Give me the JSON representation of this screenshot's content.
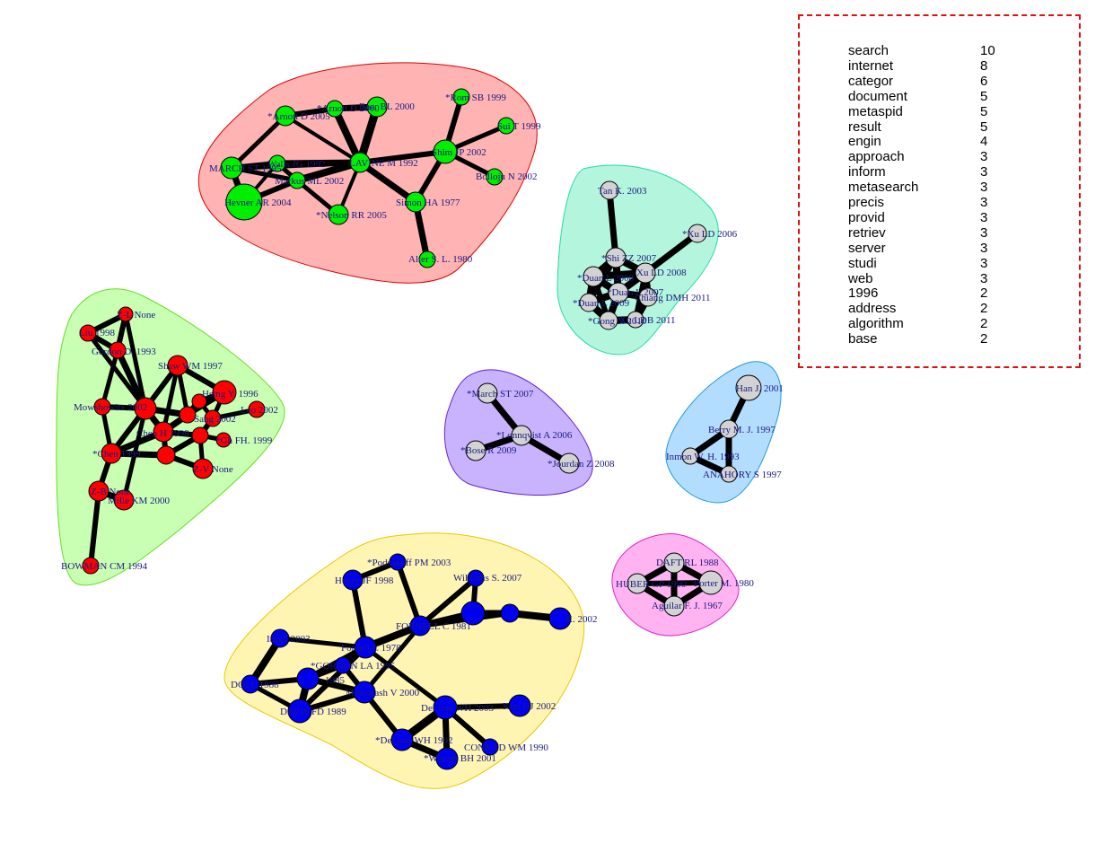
{
  "legend": {
    "terms": [
      {
        "word": "search",
        "count": "10"
      },
      {
        "word": "internet",
        "count": "8"
      },
      {
        "word": "categor",
        "count": "6"
      },
      {
        "word": "document",
        "count": "5"
      },
      {
        "word": "metaspid",
        "count": "5"
      },
      {
        "word": "result",
        "count": "5"
      },
      {
        "word": "engin",
        "count": "4"
      },
      {
        "word": "approach",
        "count": "3"
      },
      {
        "word": "inform",
        "count": "3"
      },
      {
        "word": "metasearch",
        "count": "3"
      },
      {
        "word": "precis",
        "count": "3"
      },
      {
        "word": "provid",
        "count": "3"
      },
      {
        "word": "retriev",
        "count": "3"
      },
      {
        "word": "server",
        "count": "3"
      },
      {
        "word": "studi",
        "count": "3"
      },
      {
        "word": "web",
        "count": "3"
      },
      {
        "word": "1996",
        "count": "2"
      },
      {
        "word": "address",
        "count": "2"
      },
      {
        "word": "algorithm",
        "count": "2"
      },
      {
        "word": "base",
        "count": "2"
      }
    ]
  },
  "colors": {
    "green": "#00ee00",
    "red": "#ff0000",
    "blue": "#0000ee",
    "grey": "#d3d3d3",
    "legend_border": "#e01010"
  },
  "clusters": [
    {
      "id": "red",
      "fill": "#ffb3b3",
      "stroke": "#dd0000"
    },
    {
      "id": "teal",
      "fill": "#b3f5dd",
      "stroke": "#22ddaa"
    },
    {
      "id": "lime",
      "fill": "#c9ffb3",
      "stroke": "#66dd22"
    },
    {
      "id": "purple",
      "fill": "#c9b3ff",
      "stroke": "#6622cc"
    },
    {
      "id": "sky",
      "fill": "#b3ddff",
      "stroke": "#2299dd"
    },
    {
      "id": "yellow",
      "fill": "#fff5b3",
      "stroke": "#e6c800"
    },
    {
      "id": "pink",
      "fill": "#ffb3f0",
      "stroke": "#dd22cc"
    }
  ],
  "nodes": [
    {
      "id": "g1",
      "label": "*Arnott D 2005",
      "color": "green"
    },
    {
      "id": "g2",
      "label": "*Arnott D 2000",
      "color": "green"
    },
    {
      "id": "g3",
      "label": "Baer BL 2000",
      "color": "green"
    },
    {
      "id": "g4",
      "label": "*Rom SB 1999",
      "color": "green"
    },
    {
      "id": "g5",
      "label": "Sui T 1999",
      "color": "green"
    },
    {
      "id": "g6",
      "label": "MARCH ST 1995",
      "color": "green"
    },
    {
      "id": "g7",
      "label": "Walls JG 1992",
      "color": "green"
    },
    {
      "id": "g8",
      "label": "LAVINE M 1992",
      "color": "green"
    },
    {
      "id": "g9",
      "label": "Shim JP 2002",
      "color": "green"
    },
    {
      "id": "g10",
      "label": "Markus ML 2002",
      "color": "green"
    },
    {
      "id": "g11",
      "label": "Hevner AR 2004",
      "color": "green"
    },
    {
      "id": "g12",
      "label": "Bolloju N 2002",
      "color": "green"
    },
    {
      "id": "g13",
      "label": "*Nelson RR 2005",
      "color": "green"
    },
    {
      "id": "g14",
      "label": "Simon HA 1977",
      "color": "green"
    },
    {
      "id": "g15",
      "label": "Alter S. L. 1980",
      "color": "green"
    },
    {
      "id": "t1",
      "label": "Tan K. 2003",
      "color": "grey"
    },
    {
      "id": "t2",
      "label": "*Xu LD 2006",
      "color": "grey"
    },
    {
      "id": "t3",
      "label": "*Shi ZZ 2007",
      "color": "grey"
    },
    {
      "id": "t4",
      "label": "*Duan L 2008",
      "color": "grey"
    },
    {
      "id": "t5",
      "label": "Xu LD 2008",
      "color": "grey"
    },
    {
      "id": "t6",
      "label": "*Duan L 2007",
      "color": "grey"
    },
    {
      "id": "t7",
      "label": "Chiang DMH 2011",
      "color": "grey"
    },
    {
      "id": "t8",
      "label": "*Duan L 2009",
      "color": "grey"
    },
    {
      "id": "t9",
      "label": "*Gong N 2010",
      "color": "grey"
    },
    {
      "id": "t10",
      "label": "Xu LDB 2011",
      "color": "grey"
    },
    {
      "id": "r1",
      "label": "Z-L None",
      "color": "red"
    },
    {
      "id": "r2",
      "label": "Liu 1998",
      "color": "red"
    },
    {
      "id": "r3",
      "label": "Gordon D. 1993",
      "color": "red"
    },
    {
      "id": "r4",
      "label": "Shaw WM 1997",
      "color": "red"
    },
    {
      "id": "r5",
      "label": "Hsing Y. 1996",
      "color": "red"
    },
    {
      "id": "r6",
      "label": "Mowshowitz 2002",
      "color": "red"
    },
    {
      "id": "r7",
      "label": "Leo 2002",
      "color": "red"
    },
    {
      "id": "r8",
      "label": "Sang 2002",
      "color": "red"
    },
    {
      "id": "r9",
      "label": "Chen H 1998",
      "color": "red"
    },
    {
      "id": "r10",
      "label": "*Gh FH. 1999",
      "color": "red"
    },
    {
      "id": "r11",
      "label": "*Chen 1999",
      "color": "red"
    },
    {
      "id": "r12",
      "label": "Z-V None",
      "color": "red"
    },
    {
      "id": "r13",
      "label": "Z-B None",
      "color": "red"
    },
    {
      "id": "r14",
      "label": "Mille KM 2000",
      "color": "red"
    },
    {
      "id": "r15",
      "label": "BOWMAN CM 1994",
      "color": "red"
    },
    {
      "id": "r16",
      "label": "",
      "color": "red"
    },
    {
      "id": "r17",
      "label": "",
      "color": "red"
    },
    {
      "id": "r18",
      "label": "",
      "color": "red"
    },
    {
      "id": "r19",
      "label": "",
      "color": "red"
    },
    {
      "id": "r20",
      "label": "",
      "color": "red"
    },
    {
      "id": "p1",
      "label": "*March ST 2007",
      "color": "grey"
    },
    {
      "id": "p2",
      "label": "*Lonnqvist A 2006",
      "color": "grey"
    },
    {
      "id": "p3",
      "label": "*Bose R 2009",
      "color": "grey"
    },
    {
      "id": "p4",
      "label": "*Jourdan Z 2008",
      "color": "grey"
    },
    {
      "id": "s1",
      "label": "Han J. 2001",
      "color": "grey"
    },
    {
      "id": "s2",
      "label": "Berry M. J. 1997",
      "color": "grey"
    },
    {
      "id": "s3",
      "label": "Inmon W. H. 1993",
      "color": "grey"
    },
    {
      "id": "s4",
      "label": "ANAHORY S 1997",
      "color": "grey"
    },
    {
      "id": "k1",
      "label": "DAFT RL 1988",
      "color": "grey"
    },
    {
      "id": "k2",
      "label": "HUBER GP 1990",
      "color": "grey"
    },
    {
      "id": "k3",
      "label": "Porter M. 1980",
      "color": "grey"
    },
    {
      "id": "k4",
      "label": "Aguilar F. J. 1967",
      "color": "grey"
    },
    {
      "id": "b1",
      "label": "*Podsakoff PM 2003",
      "color": "blue"
    },
    {
      "id": "b2",
      "label": "Henry JF 1998",
      "color": "blue"
    },
    {
      "id": "b3",
      "label": "Williams S. 2007",
      "color": "blue"
    },
    {
      "id": "b4",
      "label": "",
      "color": "blue"
    },
    {
      "id": "b5",
      "label": "",
      "color": "blue"
    },
    {
      "id": "b6",
      "label": "K. 2002",
      "color": "blue"
    },
    {
      "id": "b7",
      "label": "FORNELL C 1981",
      "color": "blue"
    },
    {
      "id": "b8",
      "label": "Ittner 2003",
      "color": "blue"
    },
    {
      "id": "b9",
      "label": "Fornell C 1978",
      "color": "blue"
    },
    {
      "id": "b10",
      "label": "*GORDON LA 1995",
      "color": "blue"
    },
    {
      "id": "b11",
      "label": "DOLL 1988",
      "color": "blue"
    },
    {
      "id": "b12",
      "label": "1985",
      "color": "blue"
    },
    {
      "id": "b13",
      "label": "Mehrotash V 2000",
      "color": "blue"
    },
    {
      "id": "b14",
      "label": "DAVIS FD 1989",
      "color": "blue"
    },
    {
      "id": "b15",
      "label": "DeLone WH 2003",
      "color": "blue"
    },
    {
      "id": "b16",
      "label": "Kim HJ 2002",
      "color": "blue"
    },
    {
      "id": "b17",
      "label": "*DeLone WH 1992",
      "color": "blue"
    },
    {
      "id": "b18",
      "label": "CONRAD WM 1990",
      "color": "blue"
    },
    {
      "id": "b19",
      "label": "*Wixom BH 2001",
      "color": "blue"
    }
  ]
}
